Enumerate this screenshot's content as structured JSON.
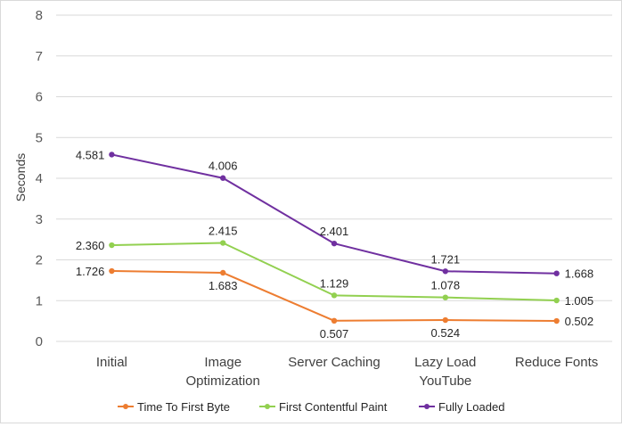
{
  "chart_data": {
    "type": "line",
    "title": "",
    "xlabel": "",
    "ylabel": "Seconds",
    "ylim": [
      0,
      8
    ],
    "yticks": [
      0,
      1,
      2,
      3,
      4,
      5,
      6,
      7,
      8
    ],
    "grid": true,
    "legend_position": "bottom",
    "categories": [
      [
        "Initial"
      ],
      [
        "Image",
        "Optimization"
      ],
      [
        "Server Caching"
      ],
      [
        "Lazy Load",
        "YouTube"
      ],
      [
        "Reduce Fonts"
      ]
    ],
    "series": [
      {
        "name": "Time To First Byte",
        "color": "#ed7d31",
        "values": [
          1.726,
          1.683,
          0.507,
          0.524,
          0.502
        ],
        "labels": [
          "1.726",
          "1.683",
          "0.507",
          "0.524",
          "0.502"
        ]
      },
      {
        "name": "First Contentful Paint",
        "color": "#92d050",
        "values": [
          2.36,
          2.415,
          1.129,
          1.078,
          1.005
        ],
        "labels": [
          "2.360",
          "2.415",
          "1.129",
          "1.078",
          "1.005"
        ]
      },
      {
        "name": "Fully Loaded",
        "color": "#7030a0",
        "values": [
          4.581,
          4.006,
          2.401,
          1.721,
          1.668
        ],
        "labels": [
          "4.581",
          "4.006",
          "2.401",
          "1.721",
          "1.668"
        ]
      }
    ]
  }
}
